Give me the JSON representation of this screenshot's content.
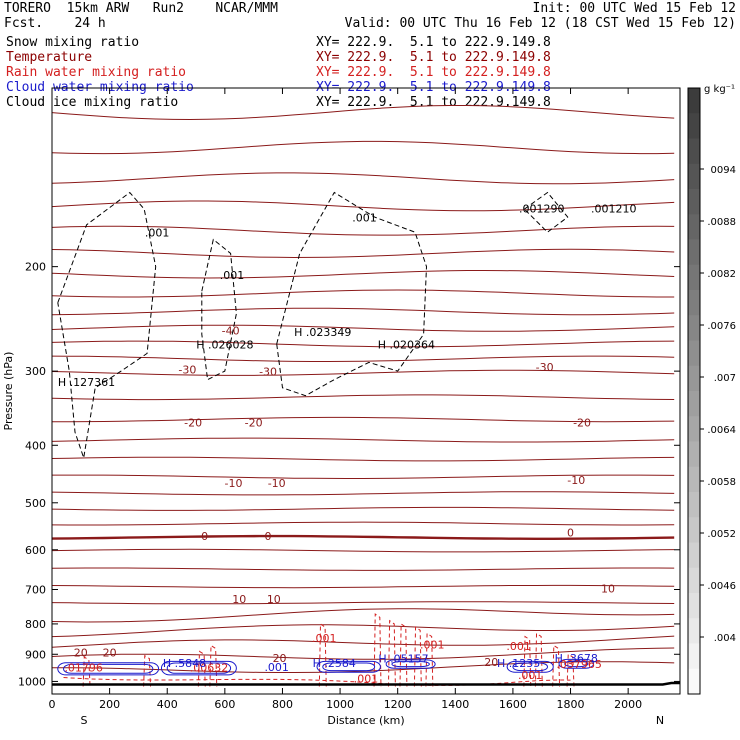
{
  "header": {
    "left_line1": "TORERO  15km ARW   Run2    NCAR/MMM",
    "left_line2": "Fcst.    24 h",
    "init": "Init: 00 UTC Wed 15 Feb 12",
    "valid": "Valid: 00 UTC Thu 16 Feb 12 (18 CST Wed 15 Feb 12)",
    "fields": [
      {
        "name": "Snow mixing ratio",
        "color": "#000000"
      },
      {
        "name": "Temperature",
        "color": "#8b0000"
      },
      {
        "name": "Rain water mixing ratio",
        "color": "#d42020"
      },
      {
        "name": "Cloud water mixing ratio",
        "color": "#1a1acc"
      },
      {
        "name": "Cloud ice mixing ratio",
        "color": "#000000"
      }
    ],
    "xy": "XY= 222.9.  5.1 to 222.9.149.8"
  },
  "colorbar": {
    "unit": "g kg⁻¹",
    "ticks": [
      "0094",
      ".0088",
      ".0082",
      ".0076",
      ".007",
      ".0064",
      ".0058",
      ".0052",
      ".0046",
      ".004"
    ]
  },
  "chart_data": {
    "type": "cross-section contour",
    "xlabel": "Distance (km)",
    "ylabel": "Pressure (hPa)",
    "xlim": [
      0,
      2180
    ],
    "ylim": [
      1050,
      100
    ],
    "y_log_scale": true,
    "x_ticks": [
      0,
      200,
      400,
      600,
      800,
      1000,
      1200,
      1400,
      1600,
      1800,
      2000
    ],
    "y_ticks": [
      200,
      300,
      400,
      500,
      600,
      700,
      800,
      900,
      1000
    ],
    "x_end_labels": {
      "left": "S",
      "right": "N"
    },
    "temperature_isotherm_labels": [
      {
        "label": "-40",
        "x": 620,
        "p": 260
      },
      {
        "label": "-30",
        "x": 470,
        "p": 303
      },
      {
        "label": "-30",
        "x": 750,
        "p": 305
      },
      {
        "label": "-30",
        "x": 1710,
        "p": 300
      },
      {
        "label": "-20",
        "x": 490,
        "p": 372
      },
      {
        "label": "-20",
        "x": 700,
        "p": 372
      },
      {
        "label": "-20",
        "x": 1840,
        "p": 372
      },
      {
        "label": "-10",
        "x": 630,
        "p": 470
      },
      {
        "label": "-10",
        "x": 780,
        "p": 470
      },
      {
        "label": "-10",
        "x": 1820,
        "p": 465
      },
      {
        "label": "0",
        "x": 530,
        "p": 578
      },
      {
        "label": "0",
        "x": 750,
        "p": 578
      },
      {
        "label": "0",
        "x": 1800,
        "p": 570
      },
      {
        "label": "10",
        "x": 650,
        "p": 738
      },
      {
        "label": "10",
        "x": 770,
        "p": 738
      },
      {
        "label": "10",
        "x": 1930,
        "p": 708
      },
      {
        "label": "20",
        "x": 100,
        "p": 908
      },
      {
        "label": "20",
        "x": 200,
        "p": 908
      },
      {
        "label": "20",
        "x": 790,
        "p": 928
      },
      {
        "label": "20",
        "x": 1525,
        "p": 942
      }
    ],
    "snow_labels": [
      {
        "label": ".001",
        "x": 365,
        "p": 178
      },
      {
        "label": ".001",
        "x": 625,
        "p": 210
      },
      {
        "label": ".001",
        "x": 1085,
        "p": 168
      },
      {
        "label": ".001290",
        "x": 1700,
        "p": 162
      },
      {
        "label": ".001210",
        "x": 1950,
        "p": 162
      }
    ],
    "ice_maxima": [
      {
        "label": "H .127361",
        "x": 120,
        "p": 318
      },
      {
        "label": "H .026028",
        "x": 600,
        "p": 275
      },
      {
        "label": "H .023349",
        "x": 940,
        "p": 262
      },
      {
        "label": "H .020364",
        "x": 1230,
        "p": 275
      }
    ],
    "rain_labels": [
      {
        "label": ".001",
        "x": 945,
        "p": 858
      },
      {
        "label": ".001",
        "x": 1320,
        "p": 880
      },
      {
        "label": ".001",
        "x": 1620,
        "p": 885
      },
      {
        "label": ".001",
        "x": 1090,
        "p": 1004
      },
      {
        "label": ".001",
        "x": 1660,
        "p": 990
      },
      {
        "label": ".00632",
        "x": 545,
        "p": 962
      },
      {
        "label": ".01796",
        "x": 110,
        "p": 962
      },
      {
        "label": ".037965",
        "x": 1830,
        "p": 950
      }
    ],
    "cloud_water_maxima": [
      {
        "label": "H .5848",
        "x": 460,
        "p": 945
      },
      {
        "label": "H .2584",
        "x": 980,
        "p": 945
      },
      {
        "label": "H .05157",
        "x": 1220,
        "p": 930
      },
      {
        "label": "H .1235",
        "x": 1620,
        "p": 945
      },
      {
        "label": "H .3678",
        "x": 1820,
        "p": 928
      },
      {
        "label": ".001",
        "x": 780,
        "p": 960
      }
    ]
  }
}
